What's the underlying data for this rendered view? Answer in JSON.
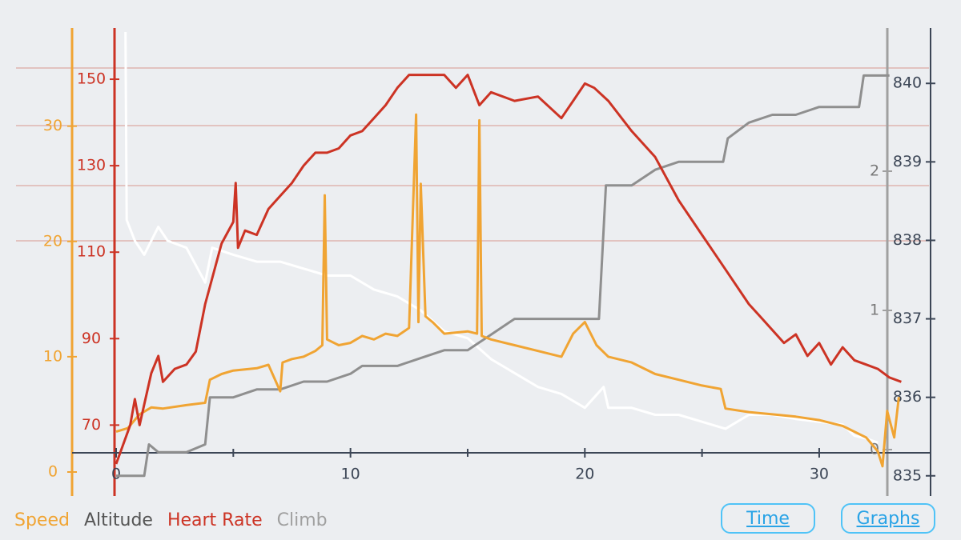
{
  "legend": {
    "speed": "Speed",
    "altitude": "Altitude",
    "heart_rate": "Heart Rate",
    "climb": "Climb"
  },
  "buttons": {
    "time": "Time",
    "graphs": "Graphs"
  },
  "colors": {
    "speed": "#f0a433",
    "altitude": "#8f8f8f",
    "heart_rate": "#cc3324",
    "climb": "#ffffff",
    "climb_axis": "#a0a0a0",
    "grid": "#d9988f",
    "background": "#eceef1",
    "button": "#29a3e6"
  },
  "chart_data": {
    "type": "line",
    "title": "",
    "grid": "horizontal",
    "x_axis": {
      "range": [
        0,
        34
      ],
      "ticks": [
        "0",
        "10",
        "20",
        "30"
      ]
    },
    "axes": {
      "speed": {
        "range": [
          0,
          34
        ],
        "ticks": [
          "0",
          "10",
          "20",
          "30"
        ]
      },
      "heart_rate": {
        "range": [
          61,
          160
        ],
        "ticks": [
          "70",
          "90",
          "110",
          "130",
          "150"
        ]
      },
      "climb": {
        "range": [
          0,
          3
        ],
        "ticks": [
          "0",
          "1",
          "2"
        ]
      },
      "altitude": {
        "range": [
          834.6,
          840.4
        ],
        "ticks": [
          "835",
          "836",
          "837",
          "838",
          "839",
          "840"
        ]
      }
    },
    "series": [
      {
        "name": "Heart Rate",
        "axis": "heart_rate",
        "x": [
          0,
          0.6,
          0.8,
          1.0,
          1.5,
          1.8,
          2.0,
          2.5,
          3.0,
          3.4,
          3.8,
          4.0,
          4.5,
          5.0,
          5.1,
          5.2,
          5.5,
          6.0,
          6.5,
          7.0,
          7.5,
          8.0,
          8.5,
          9.0,
          9.5,
          10.0,
          10.5,
          11.0,
          11.5,
          12.0,
          12.5,
          12.8,
          13.0,
          14.0,
          14.5,
          15.0,
          15.5,
          16.0,
          17.0,
          18.0,
          19.0,
          19.5,
          20.0,
          20.4,
          21.0,
          22.0,
          23.0,
          24.0,
          25.0,
          26.0,
          27.0,
          27.5,
          28.0,
          28.5,
          29.0,
          29.5,
          30.0,
          30.5,
          31.0,
          31.5,
          32.0,
          32.5,
          33.0,
          33.5
        ],
        "values": [
          61,
          70,
          76,
          70,
          82,
          86,
          80,
          83,
          84,
          87,
          98,
          102,
          112,
          117,
          126,
          111,
          115,
          114,
          120,
          123,
          126,
          130,
          133,
          133,
          134,
          137,
          138,
          141,
          144,
          148,
          151,
          151,
          151,
          151,
          148,
          151,
          144,
          147,
          145,
          146,
          141,
          145,
          149,
          148,
          145,
          138,
          132,
          122,
          114,
          106,
          98,
          95,
          92,
          89,
          91,
          86,
          89,
          84,
          88,
          85,
          84,
          83,
          81,
          80
        ]
      },
      {
        "name": "Speed",
        "axis": "speed",
        "x": [
          0,
          0.5,
          1.0,
          1.5,
          2.0,
          3.0,
          3.8,
          4.0,
          4.5,
          5.0,
          6.0,
          6.5,
          7.0,
          7.1,
          7.5,
          8.0,
          8.5,
          8.8,
          8.9,
          9.0,
          9.5,
          10.0,
          10.5,
          11.0,
          11.5,
          12.0,
          12.5,
          12.8,
          12.9,
          13.0,
          13.2,
          13.5,
          14.0,
          15.0,
          15.4,
          15.5,
          15.6,
          16.0,
          17.0,
          18.0,
          19.0,
          19.5,
          20.0,
          20.5,
          21.0,
          22.0,
          23.0,
          24.0,
          25.0,
          25.8,
          26.0,
          27.0,
          28.0,
          29.0,
          30.0,
          31.0,
          32.0,
          32.5,
          32.7,
          32.9,
          33.2,
          33.4
        ],
        "values": [
          3.5,
          3.8,
          5.0,
          5.6,
          5.5,
          5.8,
          6.0,
          8.0,
          8.5,
          8.8,
          9.0,
          9.3,
          7.0,
          9.5,
          9.8,
          10.0,
          10.5,
          11.0,
          24.0,
          11.5,
          11.0,
          11.2,
          11.8,
          11.5,
          12.0,
          11.8,
          12.5,
          31.0,
          13.0,
          25.0,
          13.5,
          13.0,
          12.0,
          12.2,
          12.0,
          30.5,
          11.8,
          11.5,
          11.0,
          10.5,
          10.0,
          12.0,
          13.0,
          11.0,
          10.0,
          9.5,
          8.5,
          8.0,
          7.5,
          7.2,
          5.5,
          5.2,
          5.0,
          4.8,
          4.5,
          4.0,
          3.0,
          1.8,
          0.5,
          5.3,
          3.0,
          6.5
        ]
      },
      {
        "name": "Altitude",
        "axis": "altitude",
        "x": [
          0,
          1.2,
          1.4,
          1.8,
          3.0,
          3.8,
          4.0,
          5.0,
          6.0,
          7.0,
          8.0,
          9.0,
          10.0,
          10.5,
          11.0,
          12.0,
          13.0,
          14.0,
          15.0,
          16.0,
          17.0,
          18.0,
          19.0,
          20.0,
          20.6,
          20.9,
          22.0,
          23.0,
          24.0,
          25.0,
          25.9,
          26.1,
          27.0,
          28.0,
          29.0,
          30.0,
          31.0,
          31.7,
          31.9,
          33.0
        ],
        "values": [
          835.0,
          835.0,
          835.4,
          835.3,
          835.3,
          835.4,
          836.0,
          836.0,
          836.1,
          836.1,
          836.2,
          836.2,
          836.3,
          836.4,
          836.4,
          836.4,
          836.5,
          836.6,
          836.6,
          836.8,
          837.0,
          837.0,
          837.0,
          837.0,
          837.0,
          838.7,
          838.7,
          838.9,
          839.0,
          839.0,
          839.0,
          839.3,
          839.5,
          839.6,
          839.6,
          839.7,
          839.7,
          839.7,
          840.1,
          840.1
        ]
      },
      {
        "name": "Climb",
        "axis": "climb",
        "x": [
          0.4,
          0.45,
          0.8,
          1.2,
          1.8,
          2.2,
          3.0,
          3.8,
          4.1,
          5.0,
          6.0,
          7.0,
          8.0,
          9.0,
          10.0,
          11.0,
          12.0,
          13.0,
          14.0,
          15.0,
          16.0,
          17.0,
          18.0,
          19.0,
          20.0,
          20.8,
          21.0,
          22.0,
          23.0,
          24.0,
          25.0,
          26.0,
          27.0,
          28.0,
          29.0,
          30.0,
          31.0,
          31.5,
          32.0,
          32.5
        ],
        "values": [
          3.0,
          1.65,
          1.5,
          1.4,
          1.6,
          1.5,
          1.45,
          1.2,
          1.45,
          1.4,
          1.35,
          1.35,
          1.3,
          1.25,
          1.25,
          1.15,
          1.1,
          1.0,
          0.85,
          0.8,
          0.65,
          0.55,
          0.45,
          0.4,
          0.3,
          0.45,
          0.3,
          0.3,
          0.25,
          0.25,
          0.2,
          0.15,
          0.25,
          0.25,
          0.22,
          0.2,
          0.18,
          0.1,
          0.08,
          0.05
        ]
      }
    ]
  }
}
